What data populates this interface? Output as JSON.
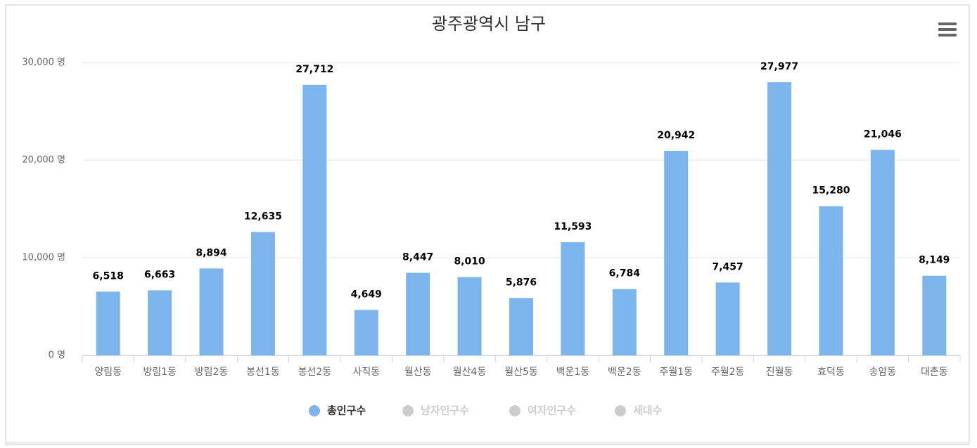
{
  "chart_data": {
    "type": "bar",
    "title": "광주광역시 남구",
    "categories": [
      "양림동",
      "방림1동",
      "방림2동",
      "봉선1동",
      "봉선2동",
      "사직동",
      "월산동",
      "월산4동",
      "월산5동",
      "백운1동",
      "백운2동",
      "주월1동",
      "주월2동",
      "진월동",
      "효덕동",
      "송암동",
      "대촌동"
    ],
    "series": [
      {
        "name": "총인구수",
        "color": "#7cb5ec",
        "values": [
          6518,
          6663,
          8894,
          12635,
          27712,
          4649,
          8447,
          8010,
          5876,
          11593,
          6784,
          20942,
          7457,
          27977,
          15280,
          21046,
          8149
        ],
        "value_labels": [
          "6,518",
          "6,663",
          "8,894",
          "12,635",
          "27,712",
          "4,649",
          "8,447",
          "8,010",
          "5,876",
          "11,593",
          "6,784",
          "20,942",
          "7,457",
          "27,977",
          "15,280",
          "21,046",
          "8,149"
        ]
      },
      {
        "name": "남자인구수",
        "visible": false
      },
      {
        "name": "여자인구수",
        "visible": false
      },
      {
        "name": "세대수",
        "visible": false
      }
    ],
    "ylim": [
      0,
      30000
    ],
    "yticks": [
      {
        "value": 0,
        "label": "0 명"
      },
      {
        "value": 10000,
        "label": "10,000 명"
      },
      {
        "value": 20000,
        "label": "20,000 명"
      },
      {
        "value": 30000,
        "label": "30,000 명"
      }
    ],
    "grid": true
  }
}
